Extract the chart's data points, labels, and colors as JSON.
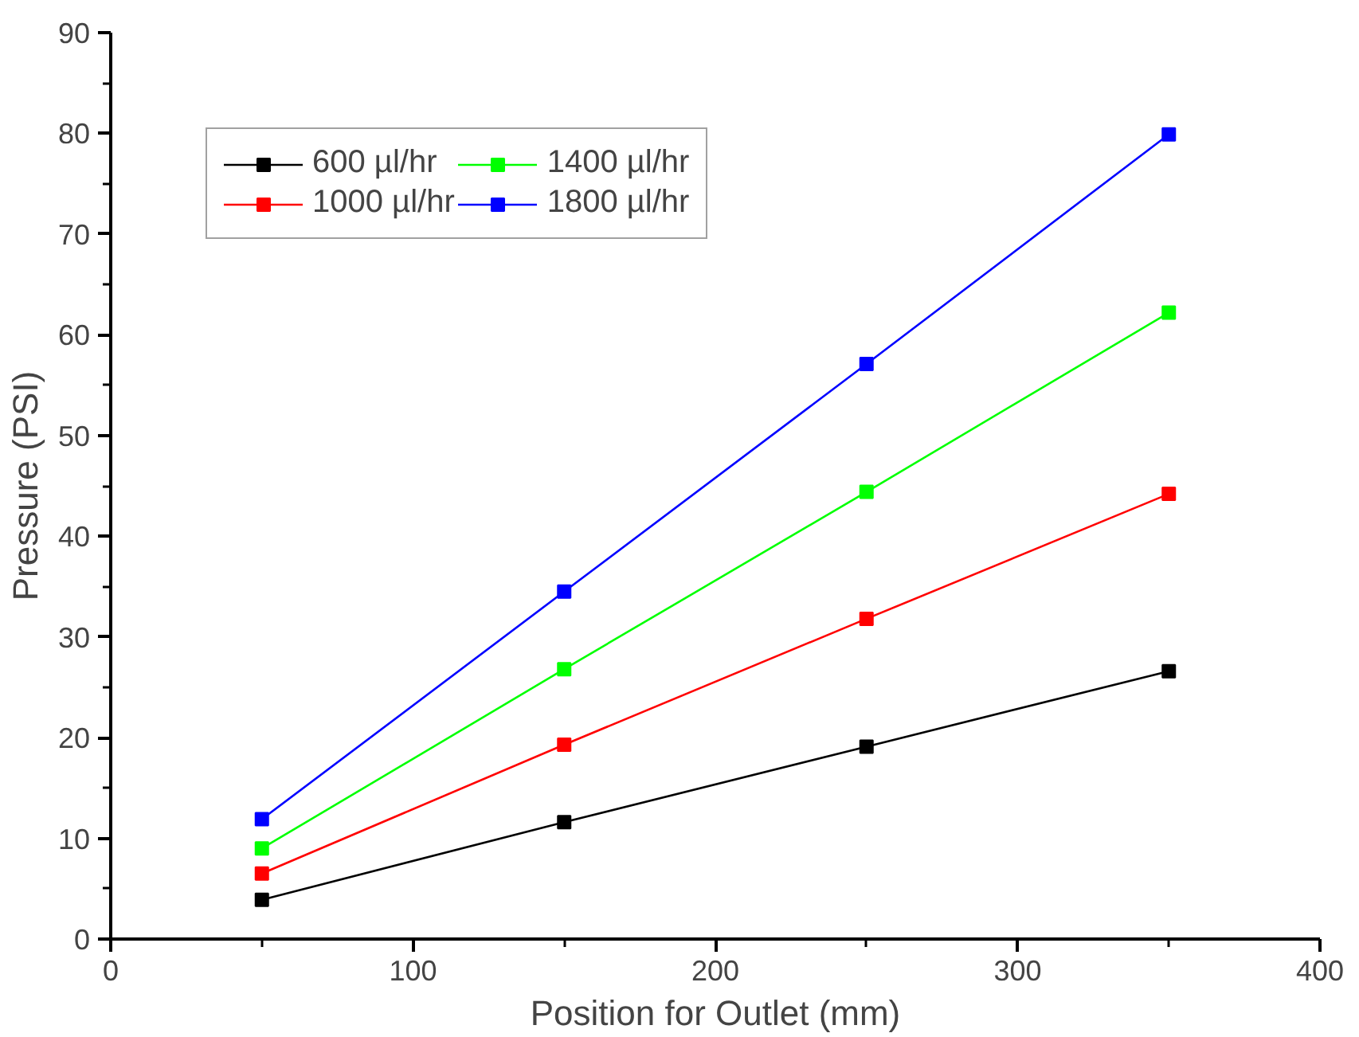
{
  "chart_data": {
    "type": "line",
    "xlabel": "Position for Outlet (mm)",
    "ylabel": "Pressure (PSI)",
    "x": [
      50,
      150,
      250,
      350
    ],
    "series": [
      {
        "name": "600 µl/hr",
        "color": "#000000",
        "values": [
          3.9,
          11.6,
          19.1,
          26.6
        ]
      },
      {
        "name": "1000 µl/hr",
        "color": "#ff0000",
        "values": [
          6.5,
          19.3,
          31.8,
          44.2
        ]
      },
      {
        "name": "1400 µl/hr",
        "color": "#00ff00",
        "values": [
          9.0,
          26.8,
          44.4,
          62.2
        ]
      },
      {
        "name": "1800 µl/hr",
        "color": "#0000ff",
        "values": [
          11.9,
          34.5,
          57.1,
          79.9
        ]
      }
    ],
    "xlim": [
      0,
      400
    ],
    "xticks": [
      0,
      100,
      200,
      300,
      400
    ],
    "ylim": [
      0,
      90
    ],
    "yticks": [
      0,
      10,
      20,
      30,
      40,
      50,
      60,
      70,
      80,
      90
    ],
    "marker": "square",
    "line_style": "solid",
    "grid": false,
    "legend": "top left"
  }
}
